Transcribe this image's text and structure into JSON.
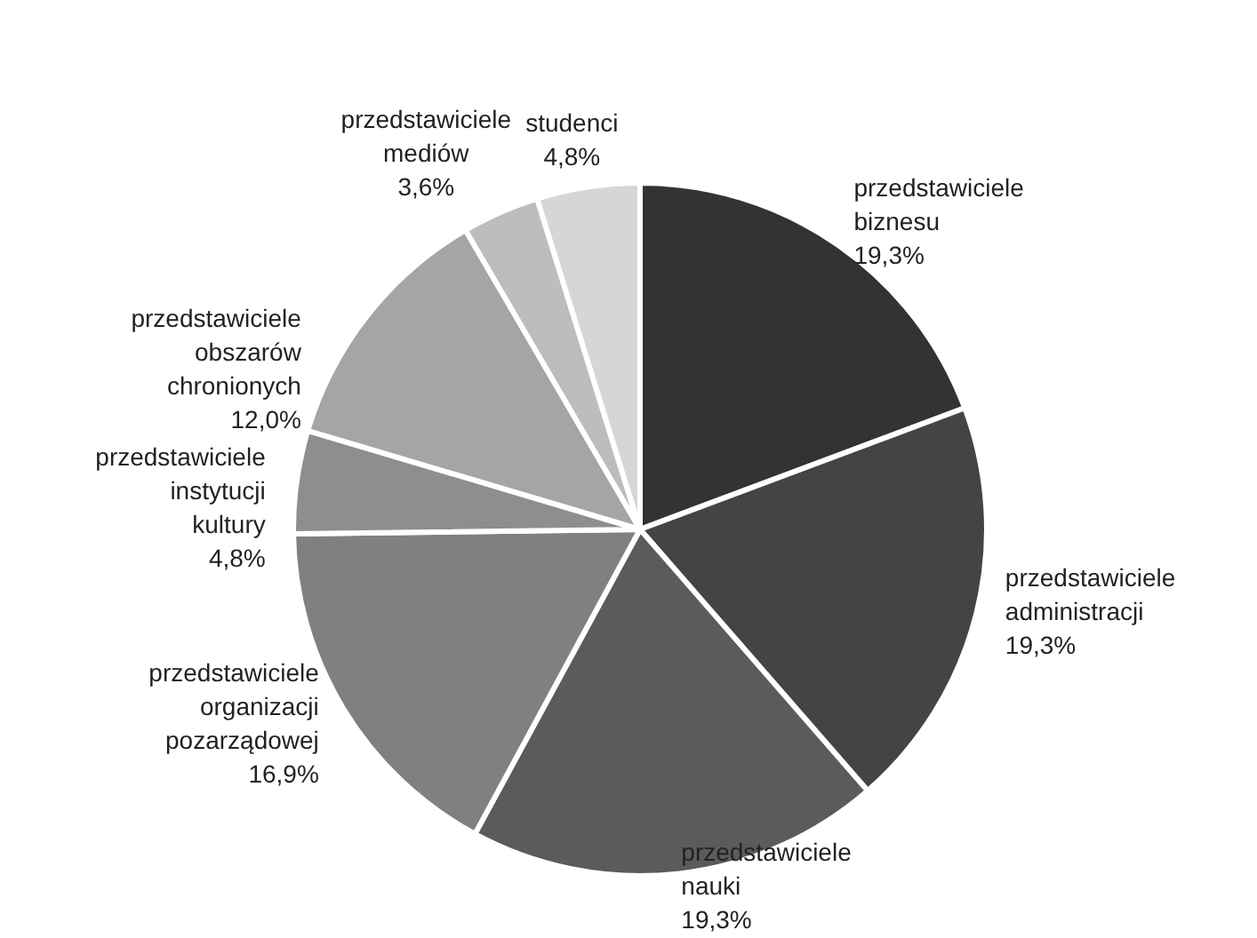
{
  "chart_data": {
    "type": "pie",
    "categories": [
      "przedstawiciele biznesu",
      "przedstawiciele administracji",
      "przedstawiciele nauki",
      "przedstawiciele organizacji pozarządowej",
      "przedstawiciele instytucji kultury",
      "przedstawiciele obszarów chronionych",
      "przedstawiciele mediów",
      "studenci"
    ],
    "values": [
      19.3,
      19.3,
      19.3,
      16.9,
      4.8,
      12.0,
      3.6,
      4.8
    ],
    "colors": [
      "#333333",
      "#444444",
      "#5b5b5b",
      "#808080",
      "#8e8e8e",
      "#a5a5a5",
      "#bdbdbd",
      "#d6d6d6"
    ],
    "value_labels": [
      "19,3%",
      "19,3%",
      "19,3%",
      "16,9%",
      "4,8%",
      "12,0%",
      "3,6%",
      "4,8%"
    ],
    "legend": false
  }
}
